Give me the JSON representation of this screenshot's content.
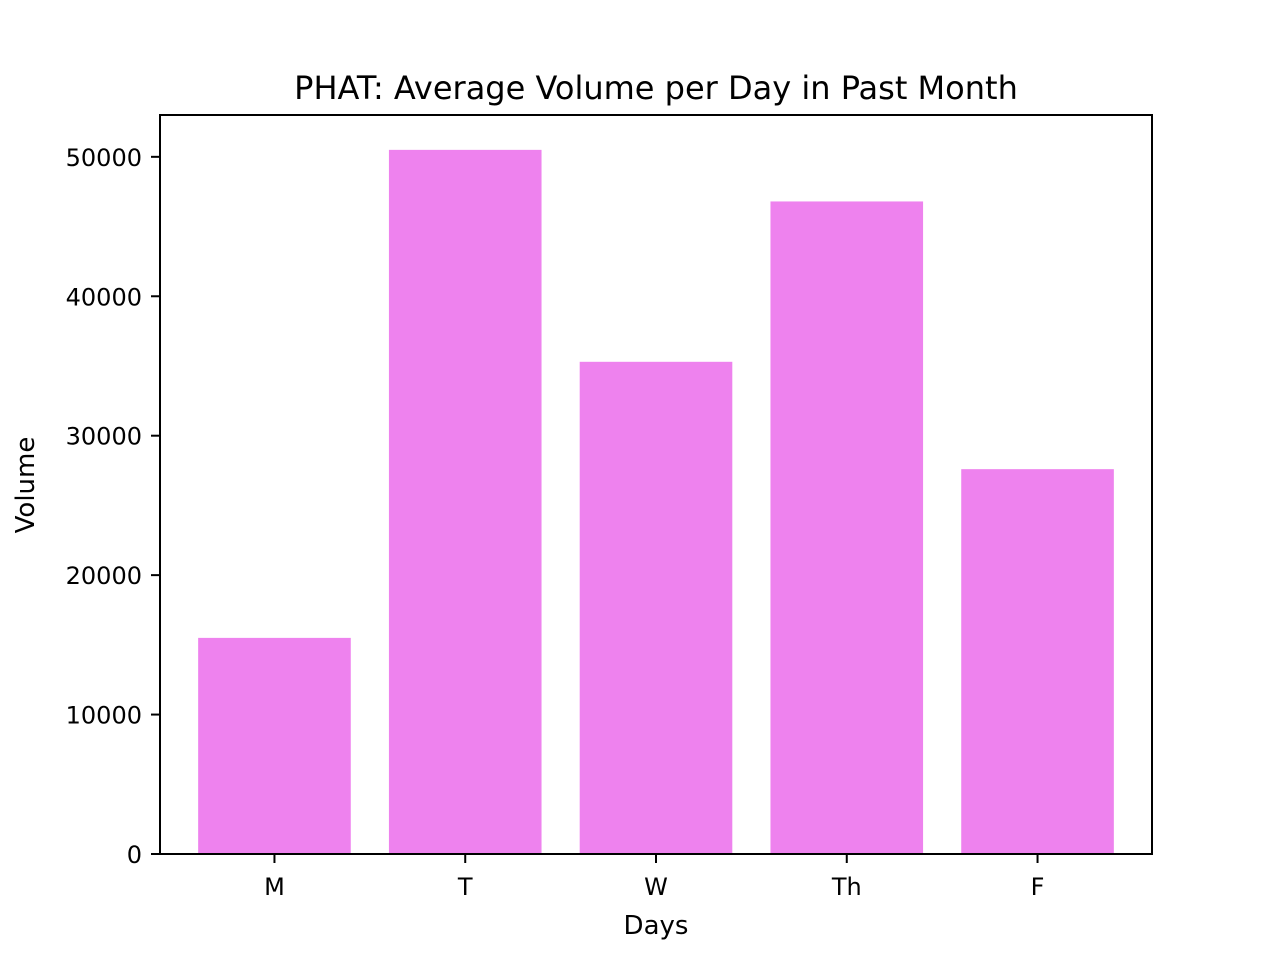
{
  "chart_data": {
    "type": "bar",
    "title": "PHAT: Average Volume per Day in Past Month",
    "xlabel": "Days",
    "ylabel": "Volume",
    "categories": [
      "M",
      "T",
      "W",
      "Th",
      "F"
    ],
    "values": [
      15500,
      50500,
      35300,
      46800,
      27600
    ],
    "ylim": [
      0,
      53000
    ],
    "yticks": [
      0,
      10000,
      20000,
      30000,
      40000,
      50000
    ],
    "grid": false,
    "bar_color": "#ee82ee"
  }
}
